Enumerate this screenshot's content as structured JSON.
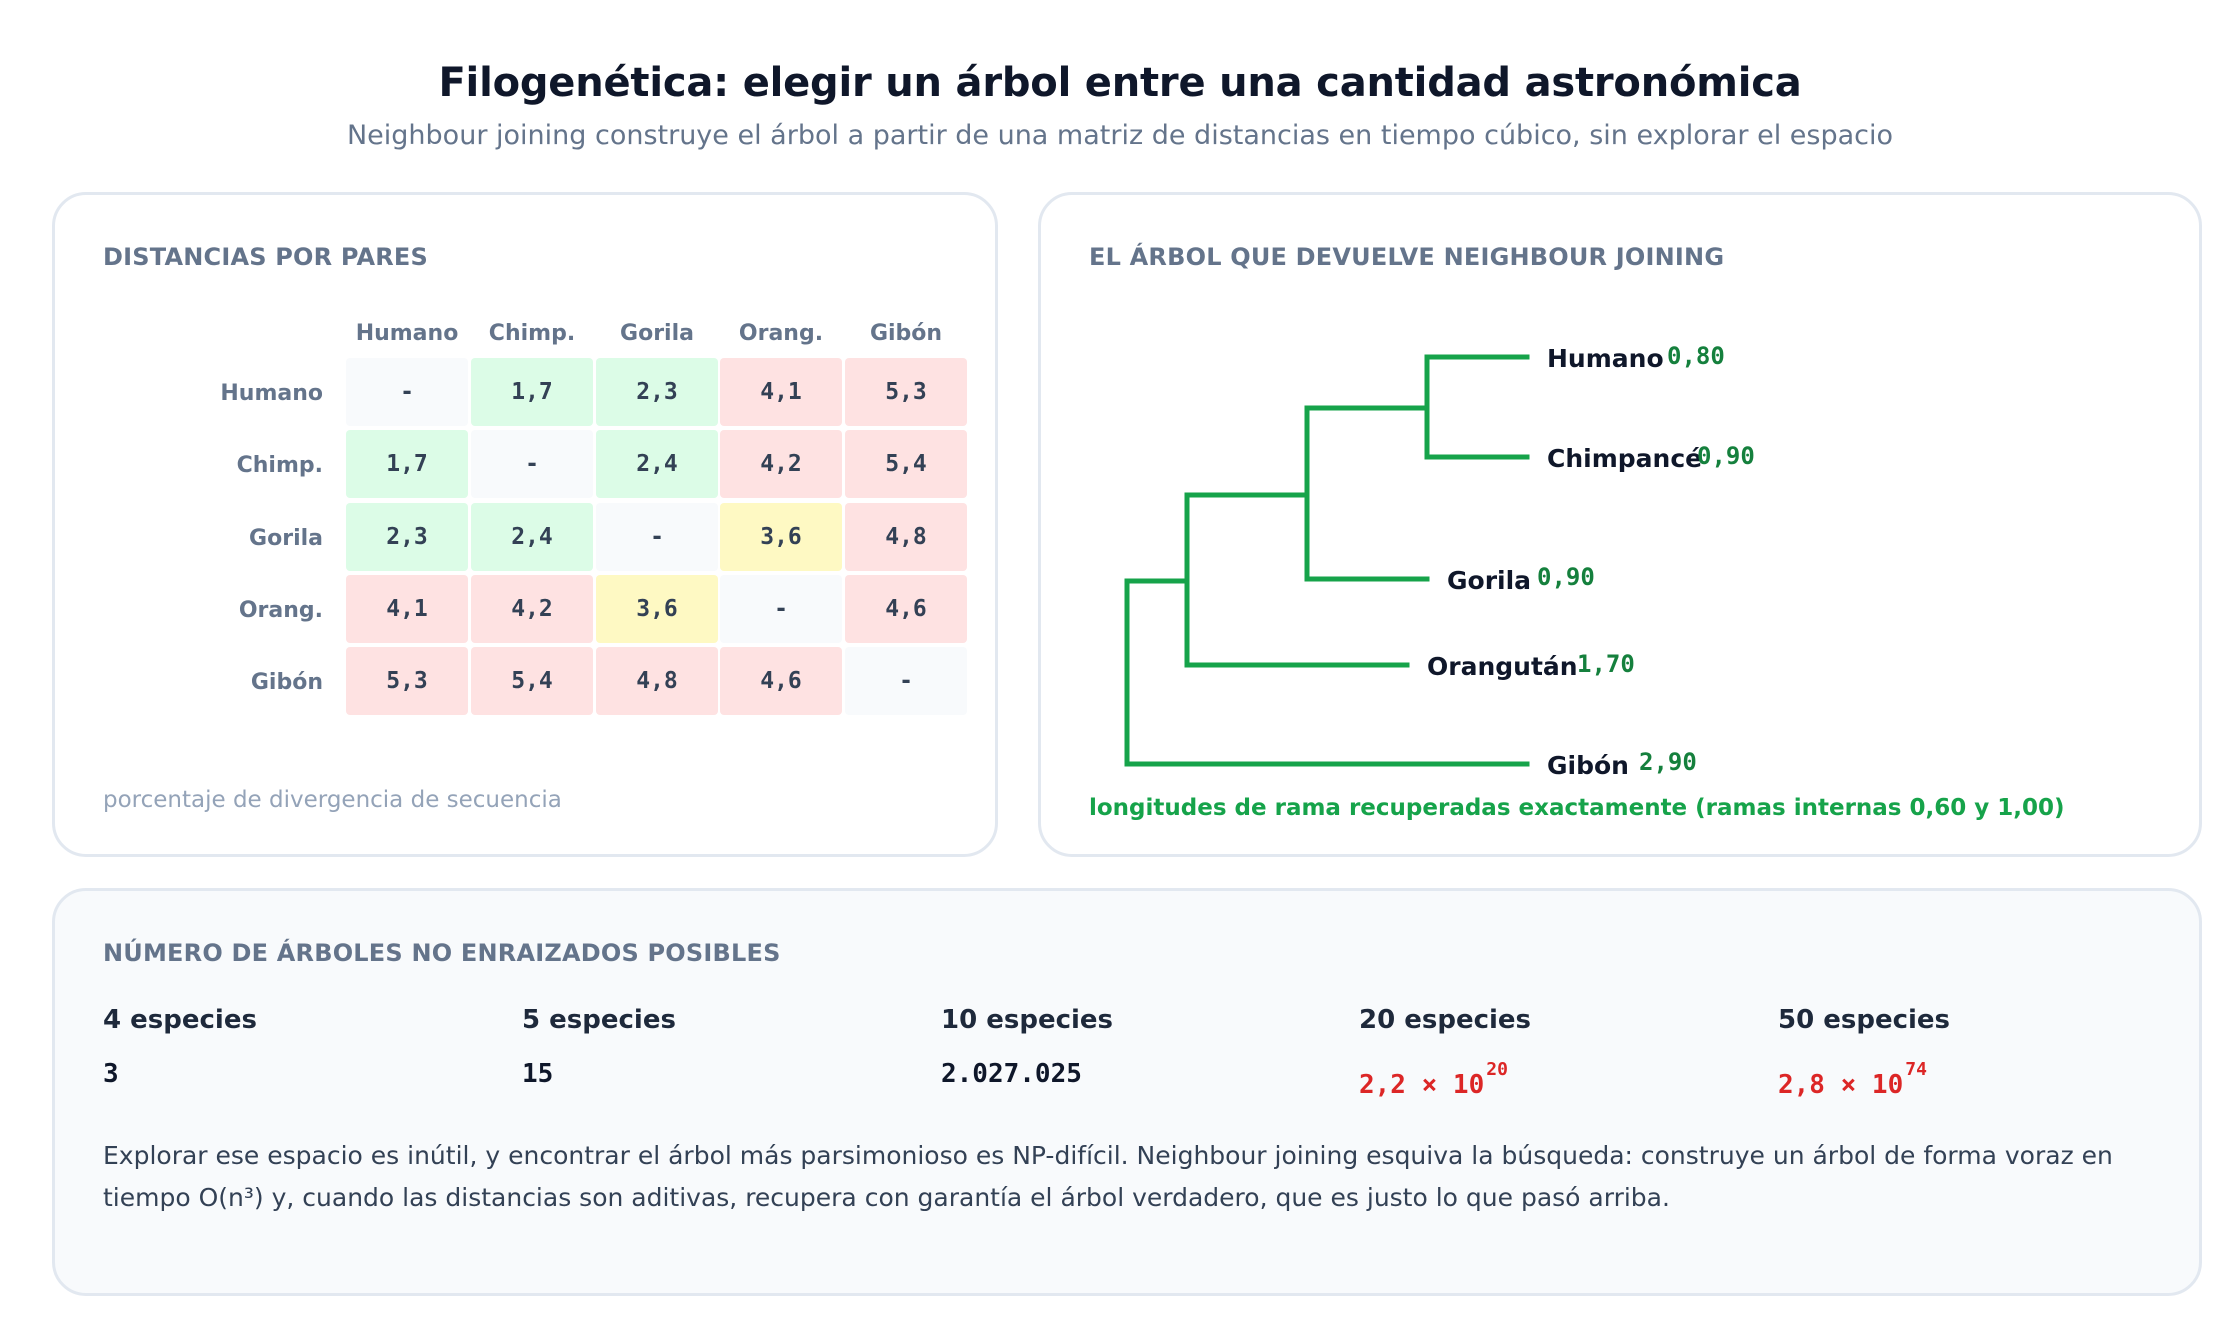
{
  "title": "Filogenética: elegir un árbol entre una cantidad astronómica",
  "subtitle": "Neighbour joining construye el árbol a partir de una matriz de distancias en tiempo cúbico, sin explorar el espacio",
  "matrix": {
    "title": "DISTANCIAS POR PARES",
    "col_labels": [
      "Humano",
      "Chimp.",
      "Gorila",
      "Orang.",
      "Gibón"
    ],
    "row_labels": [
      "Humano",
      "Chimp.",
      "Gorila",
      "Orang.",
      "Gibón"
    ],
    "cells": [
      [
        "-",
        "1,7",
        "2,3",
        "4,1",
        "5,3"
      ],
      [
        "1,7",
        "-",
        "2,4",
        "4,2",
        "5,4"
      ],
      [
        "2,3",
        "2,4",
        "-",
        "3,6",
        "4,8"
      ],
      [
        "4,1",
        "4,2",
        "3,6",
        "-",
        "4,6"
      ],
      [
        "5,3",
        "5,4",
        "4,8",
        "4,6",
        "-"
      ]
    ],
    "note": "porcentaje de divergencia de secuencia",
    "colors": {
      "near": "#dcfce7",
      "mid": "#fef9c3",
      "far": "#fee2e2",
      "diagonal": "#f8fafc"
    }
  },
  "tree": {
    "title": "EL ÁRBOL QUE DEVUELVE NEIGHBOUR JOINING",
    "leaves": [
      {
        "name": "Humano",
        "length": "0,80"
      },
      {
        "name": "Chimpancé",
        "length": "0,90"
      },
      {
        "name": "Gorila",
        "length": "0,90"
      },
      {
        "name": "Orangután",
        "length": "1,70"
      },
      {
        "name": "Gibón",
        "length": "2,90"
      }
    ],
    "note": "longitudes de rama recuperadas exactamente (ramas internas 0,60 y 1,00)",
    "branch_color": "#16a34a"
  },
  "counts": {
    "title": "NÚMERO DE ÁRBOLES NO ENRAIZADOS POSIBLES",
    "items": [
      {
        "label": "4 especies",
        "value": "3",
        "exponent": "",
        "alert": false
      },
      {
        "label": "5 especies",
        "value": "15",
        "exponent": "",
        "alert": false
      },
      {
        "label": "10 especies",
        "value": "2.027.025",
        "exponent": "",
        "alert": false
      },
      {
        "label": "20 especies",
        "value": "2,2 × 10",
        "exponent": "20",
        "alert": true
      },
      {
        "label": "50 especies",
        "value": "2,8 × 10",
        "exponent": "74",
        "alert": true
      }
    ],
    "paragraph": "Explorar ese espacio es inútil, y encontrar el árbol más parsimonioso es NP-difícil. Neighbour joining esquiva la búsqueda: construye un árbol de forma voraz en tiempo O(n³) y, cuando las distancias son aditivas, recupera con garantía el árbol verdadero, que es justo lo que pasó arriba.",
    "alert_color": "#dc2626"
  }
}
